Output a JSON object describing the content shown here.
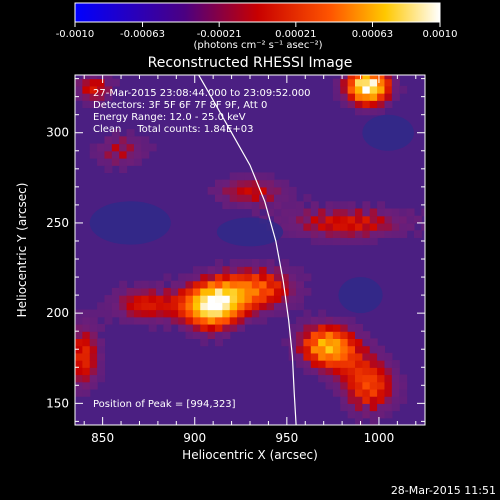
{
  "chart_data": {
    "type": "heatmap",
    "title": "Reconstructed RHESSI Image",
    "xlabel": "Heliocentric X (arcsec)",
    "ylabel": "Heliocentric Y (arcsec)",
    "xlim": [
      835,
      1025
    ],
    "ylim": [
      138,
      332
    ],
    "x_ticks": [
      850,
      900,
      950,
      1000
    ],
    "y_ticks": [
      150,
      200,
      250,
      300
    ],
    "colorbar": {
      "range": [
        -0.001,
        0.001
      ],
      "tick_values": [
        -0.001,
        -0.00063,
        -0.00021,
        0.00021,
        0.00063,
        0.001
      ],
      "tick_labels": [
        "-0.0010",
        "-0.00063",
        "-0.00021",
        "0.00021",
        "0.00063",
        "0.0010"
      ],
      "unit_label": "(photons cm⁻² s⁻¹ asec⁻²)",
      "colors": [
        "#0000ff",
        "#4b0082",
        "#c80000",
        "#ff5500",
        "#ffc800",
        "#ffffff"
      ]
    },
    "info_lines": [
      "27-Mar-2015 23:08:44.000 to 23:09:52.000",
      "Detectors: 3F 5F 6F 7F 8F 9F, Att 0",
      "Energy Range: 12.0 - 25.0 keV",
      "Clean     Total counts: 1.84E+03"
    ],
    "peak_label": "Position of Peak = [994,323]",
    "peak": [
      994,
      323
    ],
    "limb_curve": [
      [
        901,
        334
      ],
      [
        910,
        318
      ],
      [
        920,
        300
      ],
      [
        930,
        282
      ],
      [
        938,
        262
      ],
      [
        944,
        240
      ],
      [
        948,
        218
      ],
      [
        951,
        196
      ],
      [
        953,
        176
      ],
      [
        954,
        156
      ],
      [
        955,
        138
      ]
    ],
    "emission_features": [
      {
        "center": [
          994,
          326
        ],
        "radius": [
          14,
          12
        ],
        "intensity": 1.0
      },
      {
        "center": [
          909,
          204
        ],
        "radius": [
          18,
          15
        ],
        "intensity": 0.9
      },
      {
        "center": [
          972,
          182
        ],
        "radius": [
          18,
          14
        ],
        "intensity": 0.8
      },
      {
        "center": [
          935,
          214
        ],
        "radius": [
          24,
          14
        ],
        "intensity": 0.6
      },
      {
        "center": [
          995,
          160
        ],
        "radius": [
          18,
          18
        ],
        "intensity": 0.6
      },
      {
        "center": [
          840,
          176
        ],
        "radius": [
          10,
          22
        ],
        "intensity": 0.55
      },
      {
        "center": [
          872,
          205
        ],
        "radius": [
          20,
          12
        ],
        "intensity": 0.5
      },
      {
        "center": [
          983,
          250
        ],
        "radius": [
          42,
          11
        ],
        "intensity": 0.5
      },
      {
        "center": [
          930,
          268
        ],
        "radius": [
          24,
          10
        ],
        "intensity": 0.45
      },
      {
        "center": [
          860,
          290
        ],
        "radius": [
          18,
          12
        ],
        "intensity": 0.4
      },
      {
        "center": [
          845,
          325
        ],
        "radius": [
          12,
          10
        ],
        "intensity": 0.5
      }
    ]
  },
  "timestamp": "28-Mar-2015 11:51"
}
